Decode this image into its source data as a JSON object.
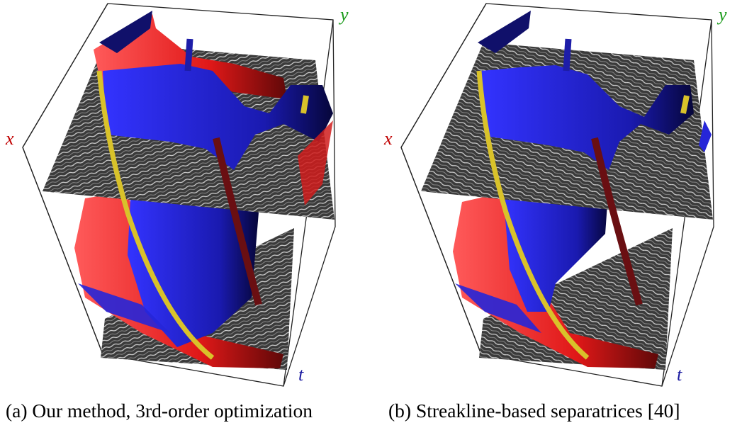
{
  "figure": {
    "panels": [
      {
        "id": "a",
        "caption": "(a) Our method, 3rd-order optimization",
        "axis_labels": {
          "x": "x",
          "y": "y",
          "t": "t"
        }
      },
      {
        "id": "b",
        "caption": "(b) Streakline-based separatrices [40]",
        "axis_labels": {
          "x": "x",
          "y": "y",
          "t": "t"
        }
      }
    ]
  },
  "colors": {
    "attracting_separatrix": "#ee2222",
    "repelling_separatrix": "#1616c0",
    "critical_line_sink": "#6a0f12",
    "critical_line_saddle": "#d9c22a",
    "critical_line_source": "#1d1da8",
    "lic_texture": "#3a3a3a",
    "frame": "#222222"
  }
}
